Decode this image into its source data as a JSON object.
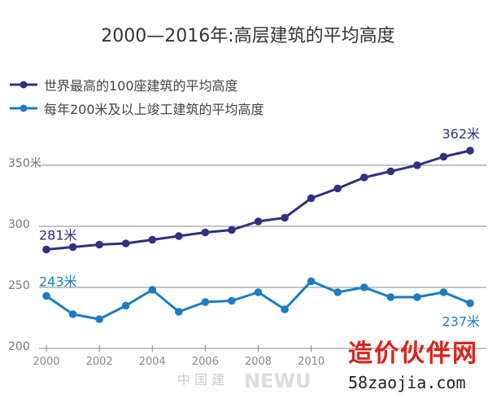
{
  "chart_data": {
    "type": "line",
    "title": "2000—2016年:高层建筑的平均高度",
    "x": [
      2000,
      2001,
      2002,
      2003,
      2004,
      2005,
      2006,
      2007,
      2008,
      2009,
      2010,
      2011,
      2012,
      2013,
      2014,
      2015,
      2016
    ],
    "x_tick_labels": [
      "2000",
      "2002",
      "2004",
      "2006",
      "2008",
      "2010"
    ],
    "y_tick_labels": [
      "200",
      "250",
      "300",
      "350米"
    ],
    "ylim": [
      200,
      370
    ],
    "xlim": [
      2000,
      2016
    ],
    "grid": true,
    "legend_placement": "top-left",
    "series": [
      {
        "name": "世界最高的100座建筑的平均高度",
        "color": "#2e3182",
        "values": [
          281,
          283,
          285,
          286,
          289,
          292,
          295,
          297,
          304,
          307,
          323,
          331,
          340,
          345,
          350,
          357,
          362
        ],
        "start_label": "281米",
        "end_label": "362米"
      },
      {
        "name": "每年200米及以上竣工建筑的平均高度",
        "color": "#1a7cc4",
        "values": [
          243,
          228,
          224,
          235,
          248,
          230,
          238,
          239,
          246,
          232,
          255,
          246,
          250,
          242,
          242,
          246,
          237
        ],
        "start_label": "243米",
        "end_label": "237米"
      }
    ]
  },
  "watermark": {
    "cn": "造价伙伴网",
    "url": "58zaojia.com",
    "faded": "NEWU",
    "faded_cn": "中 国 建"
  }
}
